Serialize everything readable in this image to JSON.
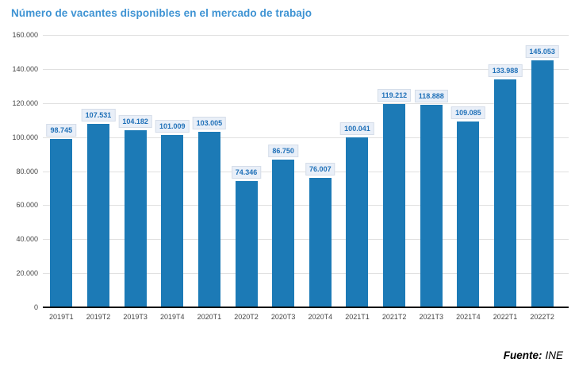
{
  "title": "Número de vacantes disponibles en el mercado de trabajo",
  "source": {
    "label": "Fuente:",
    "value": "INE"
  },
  "colors": {
    "bar": "#1c7ab6",
    "title": "#3e93d3",
    "value_label_text": "#1f70b8",
    "value_label_bg": "#e9eff8",
    "grid": "#e0e0e0",
    "axis": "#000000",
    "tick_text": "#444444"
  },
  "chart_data": {
    "type": "bar",
    "title": "Número de vacantes disponibles en el mercado de trabajo",
    "categories": [
      "2019T1",
      "2019T2",
      "2019T3",
      "2019T4",
      "2020T1",
      "2020T2",
      "2020T3",
      "2020T4",
      "2021T1",
      "2021T2",
      "2021T3",
      "2021T4",
      "2022T1",
      "2022T2"
    ],
    "values": [
      98745,
      107531,
      104182,
      101009,
      103005,
      74346,
      86750,
      76007,
      100041,
      119212,
      118888,
      109085,
      133988,
      145053
    ],
    "value_labels": [
      "98.745",
      "107.531",
      "104.182",
      "101.009",
      "103.005",
      "74.346",
      "86.750",
      "76.007",
      "100.041",
      "119.212",
      "118.888",
      "109.085",
      "133.988",
      "145.053"
    ],
    "xlabel": "",
    "ylabel": "",
    "ylim": [
      0,
      160000
    ],
    "ytick_interval": 20000,
    "ytick_labels": [
      "0",
      "20.000",
      "40.000",
      "60.000",
      "80.000",
      "100.000",
      "120.000",
      "140.000",
      "160.000"
    ],
    "grid": true,
    "legend": false,
    "source": "Fuente: INE"
  }
}
